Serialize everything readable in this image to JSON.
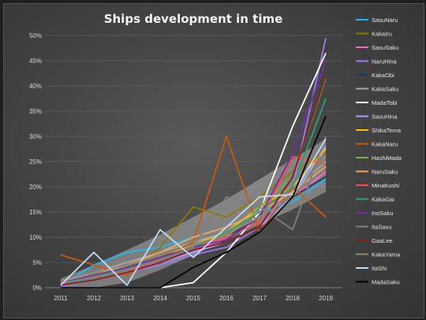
{
  "chart_data": {
    "type": "line",
    "title": "Ships development in time",
    "xlabel": "",
    "ylabel": "",
    "x": [
      "2011",
      "2012",
      "2013",
      "2014",
      "2015",
      "2016",
      "2017",
      "2018",
      "2019"
    ],
    "ylim": [
      0,
      50
    ],
    "yticks": [
      "0%",
      "5%",
      "10%",
      "15%",
      "20%",
      "25%",
      "30%",
      "35%",
      "40%",
      "45%",
      "50%"
    ],
    "grid": true,
    "legend_position": "right",
    "band": {
      "upper": [
        1.8,
        4.5,
        7.5,
        10.5,
        14.0,
        17.5,
        21.5,
        25.5,
        29.5
      ],
      "lower": [
        0.0,
        0.0,
        1.0,
        3.5,
        6.5,
        9.5,
        12.5,
        15.5,
        19.0
      ]
    },
    "series": [
      {
        "name": "SasuNaru",
        "color": "#1fb8f2",
        "values": [
          0.5,
          4.5,
          7.0,
          8.0,
          10.0,
          12.0,
          15.0,
          17.0,
          21.5
        ]
      },
      {
        "name": "KakaIru",
        "color": "#8a7a00",
        "values": [
          0.5,
          1.5,
          3.0,
          8.0,
          16.0,
          14.0,
          18.0,
          23.0,
          27.0
        ]
      },
      {
        "name": "SasuSaku",
        "color": "#ff66cc",
        "values": [
          1.0,
          2.0,
          3.5,
          5.0,
          7.0,
          10.0,
          14.0,
          18.0,
          23.0
        ]
      },
      {
        "name": "NaruHina",
        "color": "#9b7cf0",
        "values": [
          0.3,
          1.5,
          3.0,
          4.5,
          6.5,
          8.0,
          12.0,
          20.0,
          49.5
        ]
      },
      {
        "name": "KakaObi",
        "color": "#1f3864",
        "values": [
          0.5,
          2.0,
          4.0,
          6.0,
          8.0,
          10.0,
          14.0,
          18.0,
          22.0
        ]
      },
      {
        "name": "KakaSaku",
        "color": "#a6a6a6",
        "values": [
          1.0,
          3.0,
          5.0,
          7.0,
          9.0,
          11.0,
          15.0,
          19.0,
          25.0
        ]
      },
      {
        "name": "MadaTobi",
        "color": "#ffffff",
        "values": [
          0.0,
          0.0,
          0.0,
          0.0,
          1.0,
          7.0,
          15.0,
          32.0,
          46.5
        ]
      },
      {
        "name": "SasuHina",
        "color": "#a5a5ff",
        "values": [
          0.5,
          1.5,
          3.0,
          5.0,
          7.0,
          9.0,
          12.0,
          18.0,
          28.0
        ]
      },
      {
        "name": "ShikaTema",
        "color": "#ffc000",
        "values": [
          1.0,
          2.5,
          4.0,
          6.0,
          8.5,
          11.0,
          16.0,
          20.0,
          27.5
        ]
      },
      {
        "name": "KakaNaru",
        "color": "#c55a11",
        "values": [
          6.5,
          4.5,
          2.5,
          6.0,
          9.0,
          30.0,
          11.0,
          20.0,
          14.0
        ]
      },
      {
        "name": "HashiMada",
        "color": "#70ad47",
        "values": [
          0.5,
          2.0,
          4.0,
          6.0,
          8.0,
          10.0,
          16.0,
          22.0,
          41.5
        ]
      },
      {
        "name": "NaruSaku",
        "color": "#f4a460",
        "values": [
          1.0,
          2.5,
          4.5,
          7.0,
          10.0,
          12.0,
          15.0,
          19.0,
          24.0
        ]
      },
      {
        "name": "MinaKushi",
        "color": "#ff4d4d",
        "values": [
          0.5,
          2.0,
          3.5,
          5.5,
          8.0,
          10.0,
          13.0,
          26.0,
          24.5
        ]
      },
      {
        "name": "KakaGai",
        "color": "#2e9e77",
        "values": [
          0.5,
          2.0,
          4.0,
          6.0,
          8.0,
          11.0,
          15.0,
          20.0,
          37.5
        ]
      },
      {
        "name": "InoSaku",
        "color": "#7030a0",
        "values": [
          1.0,
          2.5,
          4.0,
          6.0,
          8.0,
          9.5,
          14.0,
          26.5,
          45.0
        ]
      },
      {
        "name": "ItaSasu",
        "color": "#7f7f7f",
        "values": [
          1.0,
          2.0,
          3.5,
          5.5,
          8.0,
          18.0,
          16.0,
          11.5,
          30.0
        ]
      },
      {
        "name": "GaaLee",
        "color": "#8b1a1a",
        "values": [
          0.5,
          1.5,
          3.0,
          5.0,
          7.5,
          9.0,
          12.0,
          22.0,
          42.0
        ]
      },
      {
        "name": "KakaYama",
        "color": "#8c8c6a",
        "values": [
          1.5,
          3.0,
          4.5,
          6.5,
          8.5,
          10.5,
          14.0,
          18.0,
          26.0
        ]
      },
      {
        "name": "ItaShi",
        "color": "#c5d9f1",
        "values": [
          0.5,
          7.0,
          0.5,
          11.5,
          6.0,
          12.0,
          18.0,
          18.5,
          29.5
        ]
      },
      {
        "name": "MadaSaku",
        "color": "#000000",
        "values": [
          0.0,
          0.0,
          0.0,
          0.0,
          4.0,
          7.0,
          11.0,
          18.0,
          34.0
        ]
      }
    ]
  }
}
